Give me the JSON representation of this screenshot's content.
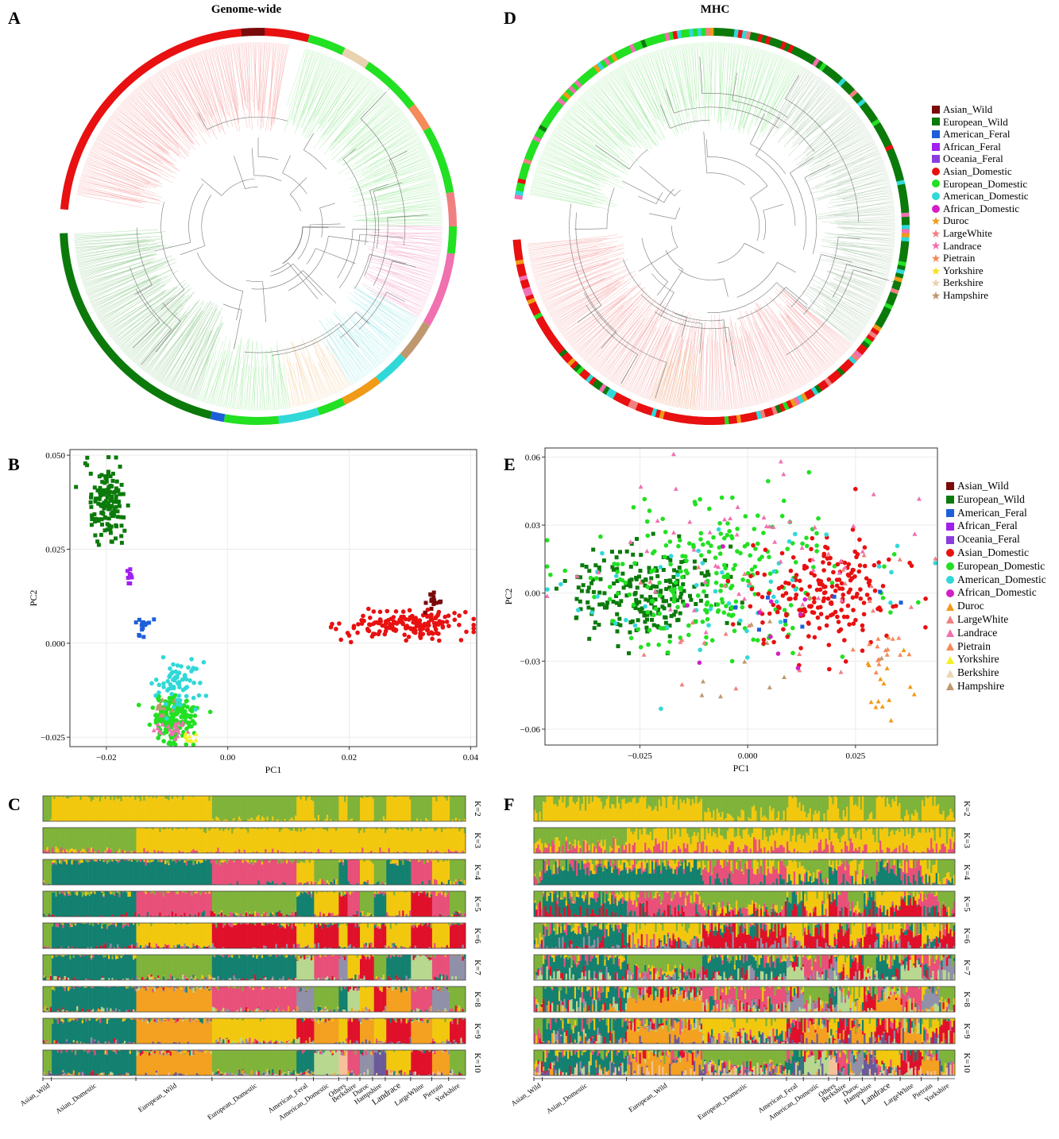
{
  "panels": {
    "A": {
      "letter": "A",
      "title": "Genome-wide"
    },
    "D": {
      "letter": "D",
      "title": "MHC"
    },
    "B": {
      "letter": "B"
    },
    "E": {
      "letter": "E"
    },
    "C": {
      "letter": "C"
    },
    "F": {
      "letter": "F"
    }
  },
  "legend_tree": [
    {
      "label": "Asian_Wild",
      "shape": "square",
      "color": "#7b0a0a"
    },
    {
      "label": "European_Wild",
      "shape": "square",
      "color": "#0b7a0b"
    },
    {
      "label": "American_Feral",
      "shape": "square",
      "color": "#1e5fd9"
    },
    {
      "label": "African_Feral",
      "shape": "square",
      "color": "#a020f0"
    },
    {
      "label": "Oceania_Feral",
      "shape": "square",
      "color": "#8a3ee0"
    },
    {
      "label": "Asian_Domestic",
      "shape": "circle",
      "color": "#e81010"
    },
    {
      "label": "European_Domestic",
      "shape": "circle",
      "color": "#22e022"
    },
    {
      "label": "American_Domestic",
      "shape": "circle",
      "color": "#30d8d8"
    },
    {
      "label": "African_Domestic",
      "shape": "circle",
      "color": "#d41fc8"
    },
    {
      "label": "Duroc",
      "shape": "star",
      "color": "#f09a18"
    },
    {
      "label": "LargeWhite",
      "shape": "star",
      "color": "#f08080"
    },
    {
      "label": "Landrace",
      "shape": "star",
      "color": "#f070b0"
    },
    {
      "label": "Pietrain",
      "shape": "star",
      "color": "#f58a5a"
    },
    {
      "label": "Yorkshire",
      "shape": "star",
      "color": "#f5e020"
    },
    {
      "label": "Berkshire",
      "shape": "star",
      "color": "#e8d2b0"
    },
    {
      "label": "Hampshire",
      "shape": "star",
      "color": "#c09870"
    }
  ],
  "legend_pca": [
    {
      "label": "Asian_Wild",
      "shape": "square",
      "color": "#7b0a0a"
    },
    {
      "label": "European_Wild",
      "shape": "square",
      "color": "#0b7a0b"
    },
    {
      "label": "American_Feral",
      "shape": "square",
      "color": "#1e5fd9"
    },
    {
      "label": "African_Feral",
      "shape": "square",
      "color": "#a020f0"
    },
    {
      "label": "Oceania_Feral",
      "shape": "square",
      "color": "#8a3ee0"
    },
    {
      "label": "Asian_Domestic",
      "shape": "circle",
      "color": "#e81010"
    },
    {
      "label": "European_Domestic",
      "shape": "circle",
      "color": "#22e022"
    },
    {
      "label": "American_Domestic",
      "shape": "circle",
      "color": "#30d8d8"
    },
    {
      "label": "African_Domestic",
      "shape": "circle",
      "color": "#d41fc8"
    },
    {
      "label": "Duroc",
      "shape": "triangle",
      "color": "#f09a18"
    },
    {
      "label": "LargeWhite",
      "shape": "triangle",
      "color": "#f08080"
    },
    {
      "label": "Landrace",
      "shape": "triangle",
      "color": "#f070b0"
    },
    {
      "label": "Pietrain",
      "shape": "triangle",
      "color": "#f58a5a"
    },
    {
      "label": "Yorkshire",
      "shape": "triangle",
      "color": "#f5f020"
    },
    {
      "label": "Berkshire",
      "shape": "triangle",
      "color": "#ecd6b4"
    },
    {
      "label": "Hampshire",
      "shape": "triangle",
      "color": "#c09870"
    }
  ],
  "chart_data": [
    {
      "id": "B",
      "type": "scatter",
      "xlabel": "PC1",
      "ylabel": "PC2",
      "xlim": [
        -0.026,
        0.041
      ],
      "ylim": [
        -0.0275,
        0.0515
      ],
      "xticks": [
        -0.02,
        0.0,
        0.02,
        0.04
      ],
      "xtick_labels": [
        "−0.02",
        "0.00",
        "0.02",
        "0.04"
      ],
      "yticks": [
        -0.025,
        0.0,
        0.025,
        0.05
      ],
      "ytick_labels": [
        "−0.025",
        "0.000",
        "0.025",
        "0.050"
      ],
      "clusters": [
        {
          "group": "European_Wild",
          "cx": -0.02,
          "cy": 0.037,
          "sx": 0.0015,
          "sy": 0.005,
          "n": 140
        },
        {
          "group": "Asian_Domestic",
          "cx": 0.03,
          "cy": 0.005,
          "sx": 0.005,
          "sy": 0.002,
          "n": 170
        },
        {
          "group": "Asian_Wild",
          "cx": 0.034,
          "cy": 0.011,
          "sx": 0.0008,
          "sy": 0.0012,
          "n": 18
        },
        {
          "group": "European_Domestic",
          "cx": -0.009,
          "cy": -0.02,
          "sx": 0.0018,
          "sy": 0.003,
          "n": 180
        },
        {
          "group": "American_Domestic",
          "cx": -0.009,
          "cy": -0.011,
          "sx": 0.002,
          "sy": 0.003,
          "n": 70
        },
        {
          "group": "American_Feral",
          "cx": -0.014,
          "cy": 0.005,
          "sx": 0.0008,
          "sy": 0.0015,
          "n": 14
        },
        {
          "group": "African_Feral",
          "cx": -0.016,
          "cy": 0.018,
          "sx": 0.0005,
          "sy": 0.001,
          "n": 8
        },
        {
          "group": "Landrace",
          "cx": -0.009,
          "cy": -0.023,
          "sx": 0.0015,
          "sy": 0.0012,
          "n": 25
        },
        {
          "group": "Yorkshire",
          "cx": -0.006,
          "cy": -0.025,
          "sx": 0.001,
          "sy": 0.0008,
          "n": 10
        },
        {
          "group": "Hampshire",
          "cx": -0.011,
          "cy": -0.017,
          "sx": 0.001,
          "sy": 0.001,
          "n": 10
        }
      ]
    },
    {
      "id": "E",
      "type": "scatter",
      "xlabel": "PC1",
      "ylabel": "PC2",
      "xlim": [
        -0.047,
        0.044
      ],
      "ylim": [
        -0.067,
        0.064
      ],
      "xticks": [
        -0.025,
        0.0,
        0.025
      ],
      "xtick_labels": [
        "−0.025",
        "0.000",
        "0.025"
      ],
      "yticks": [
        -0.06,
        -0.03,
        0.0,
        0.03,
        0.06
      ],
      "ytick_labels": [
        "−0.06",
        "−0.03",
        "0.00",
        "0.03",
        "0.06"
      ],
      "clusters": [
        {
          "group": "European_Wild",
          "cx": -0.024,
          "cy": 0.0,
          "sx": 0.008,
          "sy": 0.01,
          "n": 220
        },
        {
          "group": "European_Domestic",
          "cx": -0.008,
          "cy": 0.008,
          "sx": 0.016,
          "sy": 0.018,
          "n": 240
        },
        {
          "group": "Asian_Domestic",
          "cx": 0.018,
          "cy": 0.0,
          "sx": 0.008,
          "sy": 0.012,
          "n": 200
        },
        {
          "group": "American_Domestic",
          "cx": 0.0,
          "cy": 0.0,
          "sx": 0.018,
          "sy": 0.015,
          "n": 50
        },
        {
          "group": "Landrace",
          "cx": 0.0,
          "cy": 0.02,
          "sx": 0.02,
          "sy": 0.018,
          "n": 50
        },
        {
          "group": "Duroc",
          "cx": 0.032,
          "cy": -0.045,
          "sx": 0.003,
          "sy": 0.006,
          "n": 14
        },
        {
          "group": "LargeWhite",
          "cx": 0.005,
          "cy": -0.01,
          "sx": 0.02,
          "sy": 0.02,
          "n": 30
        },
        {
          "group": "Pietrain",
          "cx": 0.03,
          "cy": -0.027,
          "sx": 0.004,
          "sy": 0.004,
          "n": 16
        },
        {
          "group": "African_Domestic",
          "cx": 0.0,
          "cy": -0.01,
          "sx": 0.02,
          "sy": 0.02,
          "n": 10
        },
        {
          "group": "Hampshire",
          "cx": 0.0,
          "cy": -0.03,
          "sx": 0.015,
          "sy": 0.01,
          "n": 10
        },
        {
          "group": "American_Feral",
          "cx": 0.0,
          "cy": 0.0,
          "sx": 0.015,
          "sy": 0.01,
          "n": 8
        }
      ]
    },
    {
      "id": "C",
      "type": "bar",
      "kind": "admixture",
      "k_labels": [
        "K=2",
        "K=3",
        "K=4",
        "K=5",
        "K=6",
        "K=7",
        "K=8",
        "K=9",
        "K=10"
      ],
      "group_labels": [
        "Asian_Wild",
        "Asian_Domestic",
        "European_Wild",
        "European_Domestic",
        "American_Feral",
        "American_Domestic",
        "Others",
        "Berkshire",
        "Duroc",
        "Hampshire",
        "Landrace",
        "LargeWhite",
        "Pietrain",
        "Yorkshire"
      ],
      "group_fractions": [
        0.02,
        0.2,
        0.18,
        0.2,
        0.04,
        0.06,
        0.02,
        0.03,
        0.03,
        0.03,
        0.06,
        0.05,
        0.04,
        0.04
      ]
    },
    {
      "id": "F",
      "type": "bar",
      "kind": "admixture",
      "k_labels": [
        "K=2",
        "K=3",
        "K=4",
        "K=5",
        "K=6",
        "K=7",
        "K=8",
        "K=9",
        "K=10"
      ],
      "group_labels": [
        "Asian_Wild",
        "Asian_Domestic",
        "European_Wild",
        "European_Domestic",
        "American_Feral",
        "American_Domestic",
        "Others",
        "Berkshire",
        "Duroc",
        "Hampshire",
        "Landrace",
        "LargeWhite",
        "Pietrain",
        "Yorkshire"
      ],
      "group_fractions": [
        0.02,
        0.2,
        0.18,
        0.2,
        0.04,
        0.06,
        0.02,
        0.03,
        0.03,
        0.03,
        0.06,
        0.05,
        0.04,
        0.04
      ]
    }
  ],
  "admix_palette": [
    "#7fb33a",
    "#f2c80f",
    "#e8507a",
    "#138070",
    "#e0102a",
    "#9090a8",
    "#b8d890",
    "#f4a020",
    "#6a5a9a",
    "#f6c09a"
  ]
}
